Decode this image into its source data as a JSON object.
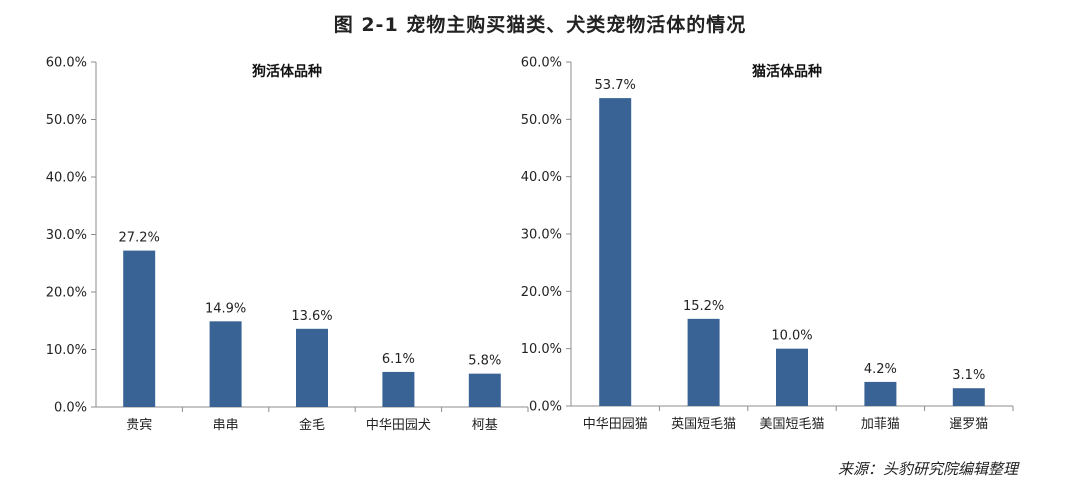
{
  "figure_title": "图 2-1  宠物主购买猫类、犬类宠物活体的情况",
  "source_note": "来源：头豹研究院编辑整理",
  "colors": {
    "bar": "#3a6395",
    "axis": "#8c8c8c"
  },
  "chart_data": [
    {
      "type": "bar",
      "title": "狗活体品种",
      "categories": [
        "贵宾",
        "串串",
        "金毛",
        "中华田园犬",
        "柯基"
      ],
      "values": [
        27.2,
        14.9,
        13.6,
        6.1,
        5.8
      ],
      "value_labels": [
        "27.2%",
        "14.9%",
        "13.6%",
        "6.1%",
        "5.8%"
      ],
      "ylim": [
        0,
        60
      ],
      "yticks": [
        0,
        10,
        20,
        30,
        40,
        50,
        60
      ],
      "ytick_labels": [
        "0.0%",
        "10.0%",
        "20.0%",
        "30.0%",
        "40.0%",
        "50.0%",
        "60.0%"
      ],
      "xlabel": "",
      "ylabel": "",
      "grid": false
    },
    {
      "type": "bar",
      "title": "猫活体品种",
      "categories": [
        "中华田园猫",
        "英国短毛猫",
        "美国短毛猫",
        "加菲猫",
        "暹罗猫"
      ],
      "values": [
        53.7,
        15.2,
        10.0,
        4.2,
        3.1
      ],
      "value_labels": [
        "53.7%",
        "15.2%",
        "10.0%",
        "4.2%",
        "3.1%"
      ],
      "ylim": [
        0,
        60
      ],
      "yticks": [
        0,
        10,
        20,
        30,
        40,
        50,
        60
      ],
      "ytick_labels": [
        "0.0%",
        "10.0%",
        "20.0%",
        "30.0%",
        "40.0%",
        "50.0%",
        "60.0%"
      ],
      "xlabel": "",
      "ylabel": "",
      "grid": false
    }
  ]
}
